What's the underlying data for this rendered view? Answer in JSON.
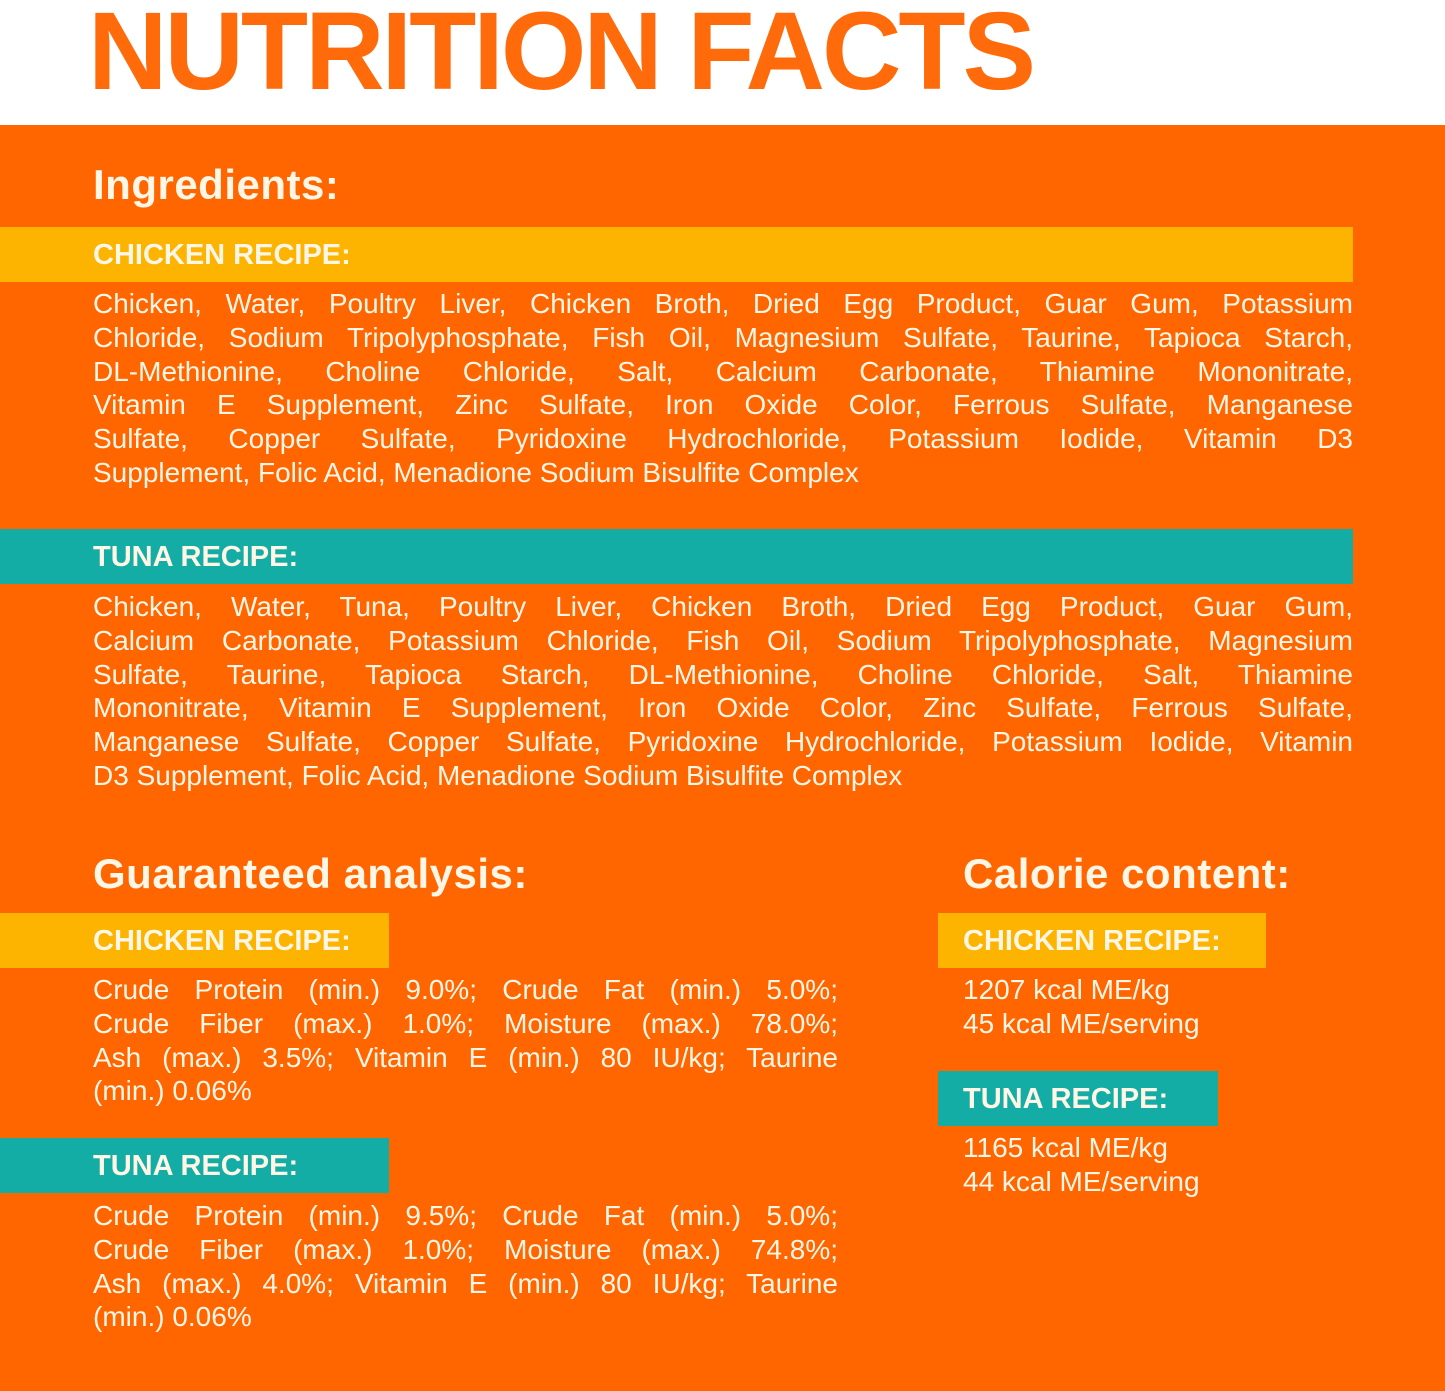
{
  "title": "NUTRITION FACTS",
  "colors": {
    "orange": "#FF6600",
    "yellow": "#FDB400",
    "teal": "#14ADA6",
    "text": "#FFF6E6"
  },
  "ingredients": {
    "heading": "Ingredients:",
    "chicken": {
      "label": "CHICKEN RECIPE:",
      "lines": [
        "Chicken, Water, Poultry Liver, Chicken Broth, Dried Egg Product, Guar Gum, Potassium",
        "Chloride, Sodium Tripolyphosphate, Fish Oil, Magnesium Sulfate, Taurine, Tapioca Starch,",
        "DL-Methionine, Choline Chloride, Salt, Calcium Carbonate, Thiamine Mononitrate,",
        "Vitamin E Supplement, Zinc Sulfate, Iron Oxide Color, Ferrous Sulfate, Manganese",
        "Sulfate, Copper Sulfate, Pyridoxine Hydrochloride, Potassium Iodide, Vitamin D3",
        "Supplement, Folic Acid, Menadione Sodium Bisulfite Complex"
      ]
    },
    "tuna": {
      "label": "TUNA RECIPE:",
      "lines": [
        "Chicken, Water, Tuna, Poultry Liver, Chicken Broth, Dried Egg Product, Guar Gum,",
        "Calcium Carbonate, Potassium Chloride, Fish Oil, Sodium Tripolyphosphate, Magnesium",
        "Sulfate, Taurine, Tapioca Starch, DL-Methionine, Choline Chloride, Salt, Thiamine",
        "Mononitrate, Vitamin E Supplement, Iron Oxide Color, Zinc Sulfate, Ferrous Sulfate,",
        "Manganese Sulfate, Copper Sulfate, Pyridoxine Hydrochloride, Potassium Iodide, Vitamin",
        "D3 Supplement, Folic Acid, Menadione Sodium Bisulfite Complex"
      ]
    }
  },
  "analysis": {
    "heading": "Guaranteed analysis:",
    "chicken": {
      "label": "CHICKEN RECIPE:",
      "lines": [
        "Crude Protein (min.) 9.0%; Crude Fat (min.) 5.0%;",
        "Crude Fiber (max.) 1.0%; Moisture (max.) 78.0%;",
        "Ash (max.) 3.5%; Vitamin E (min.) 80 IU/kg; Taurine",
        "(min.) 0.06%"
      ]
    },
    "tuna": {
      "label": "TUNA RECIPE:",
      "lines": [
        "Crude Protein (min.) 9.5%; Crude Fat (min.) 5.0%;",
        "Crude Fiber (max.) 1.0%; Moisture (max.) 74.8%;",
        "Ash (max.) 4.0%; Vitamin E (min.) 80 IU/kg; Taurine",
        "(min.) 0.06%"
      ]
    }
  },
  "calories": {
    "heading": "Calorie content:",
    "chicken": {
      "label": "CHICKEN RECIPE:",
      "lines": [
        "1207 kcal ME/kg",
        "45 kcal ME/serving"
      ]
    },
    "tuna": {
      "label": "TUNA RECIPE:",
      "lines": [
        "1165 kcal ME/kg",
        "44 kcal ME/serving"
      ]
    }
  }
}
